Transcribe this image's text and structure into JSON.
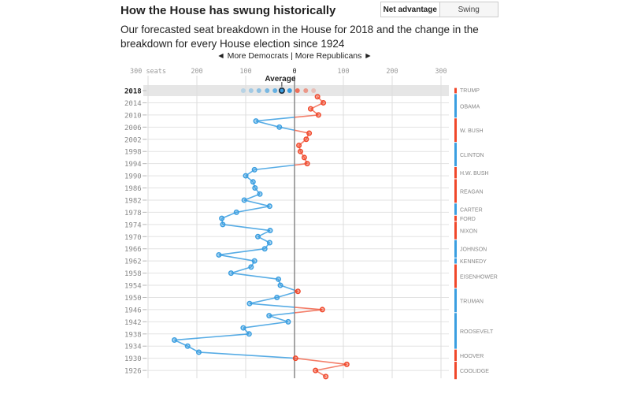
{
  "header": {
    "title": "How the House has swung historically",
    "subtitle": "Our forecasted seat breakdown in the House for 2018 and the change in the breakdown for every House election since 1924"
  },
  "toggle": {
    "options": [
      "Net advantage",
      "Swing"
    ],
    "selected": "Net advantage"
  },
  "direction_label": "◄ More Democrats | More Republicans ►",
  "colors": {
    "democrat": "#3a9ee0",
    "republican": "#f0472a",
    "band": "#e6e6e6"
  },
  "chart_data": {
    "type": "line",
    "orientation": "vertical",
    "x_ticks": [
      {
        "value": -300,
        "label": "300 seats"
      },
      {
        "value": -200,
        "label": "200"
      },
      {
        "value": -100,
        "label": "100"
      },
      {
        "value": 0,
        "label": "0"
      },
      {
        "value": 100,
        "label": "100"
      },
      {
        "value": 200,
        "label": "200"
      },
      {
        "value": 300,
        "label": "300"
      }
    ],
    "xlim": [
      -310,
      310
    ],
    "y_tick_labels": [
      "2018",
      "2014",
      "2010",
      "2006",
      "2002",
      "1998",
      "1994",
      "1990",
      "1986",
      "1982",
      "1978",
      "1974",
      "1970",
      "1966",
      "1962",
      "1958",
      "1954",
      "1950",
      "1946",
      "1942",
      "1938",
      "1934",
      "1930",
      "1926"
    ],
    "forecast_2018": {
      "year": 2018,
      "dots": [
        -105,
        -89,
        -73,
        -56,
        -40,
        -26,
        -10,
        6,
        23,
        39
      ],
      "average": -26,
      "average_label": "Average"
    },
    "series": {
      "years": [
        2016,
        2014,
        2012,
        2010,
        2008,
        2006,
        2004,
        2002,
        2000,
        1998,
        1996,
        1994,
        1992,
        1990,
        1988,
        1986,
        1984,
        1982,
        1980,
        1978,
        1976,
        1974,
        1972,
        1970,
        1968,
        1966,
        1964,
        1962,
        1960,
        1958,
        1956,
        1954,
        1952,
        1950,
        1948,
        1946,
        1944,
        1942,
        1940,
        1938,
        1936,
        1934,
        1932,
        1930,
        1928,
        1926,
        1924
      ],
      "net_advantage": [
        47,
        59,
        33,
        49,
        -79,
        -31,
        30,
        24,
        9,
        12,
        20,
        26,
        -82,
        -100,
        -85,
        -81,
        -71,
        -103,
        -51,
        -119,
        -149,
        -147,
        -50,
        -75,
        -51,
        -61,
        -155,
        -82,
        -89,
        -130,
        -33,
        -29,
        7,
        -36,
        -92,
        57,
        -52,
        -13,
        -105,
        -93,
        -246,
        -219,
        -196,
        2,
        107,
        43,
        64
      ]
    },
    "presidents": [
      {
        "name": "TRUMP",
        "party": "R",
        "from": 2018,
        "to": 2018
      },
      {
        "name": "OBAMA",
        "party": "D",
        "from": 2010,
        "to": 2016
      },
      {
        "name": "W. BUSH",
        "party": "R",
        "from": 2002,
        "to": 2008
      },
      {
        "name": "CLINTON",
        "party": "D",
        "from": 1994,
        "to": 2000
      },
      {
        "name": "H.W. BUSH",
        "party": "R",
        "from": 1990,
        "to": 1992
      },
      {
        "name": "REAGAN",
        "party": "R",
        "from": 1982,
        "to": 1988
      },
      {
        "name": "CARTER",
        "party": "D",
        "from": 1978,
        "to": 1980
      },
      {
        "name": "FORD",
        "party": "R",
        "from": 1976,
        "to": 1976
      },
      {
        "name": "NIXON",
        "party": "R",
        "from": 1970,
        "to": 1974
      },
      {
        "name": "JOHNSON",
        "party": "D",
        "from": 1964,
        "to": 1968
      },
      {
        "name": "KENNEDY",
        "party": "D",
        "from": 1962,
        "to": 1962
      },
      {
        "name": "EISENHOWER",
        "party": "R",
        "from": 1954,
        "to": 1960
      },
      {
        "name": "TRUMAN",
        "party": "D",
        "from": 1946,
        "to": 1952
      },
      {
        "name": "ROOSEVELT",
        "party": "D",
        "from": 1934,
        "to": 1944
      },
      {
        "name": "HOOVER",
        "party": "R",
        "from": 1930,
        "to": 1932
      },
      {
        "name": "COOLIDGE",
        "party": "R",
        "from": 1924,
        "to": 1928
      }
    ]
  }
}
